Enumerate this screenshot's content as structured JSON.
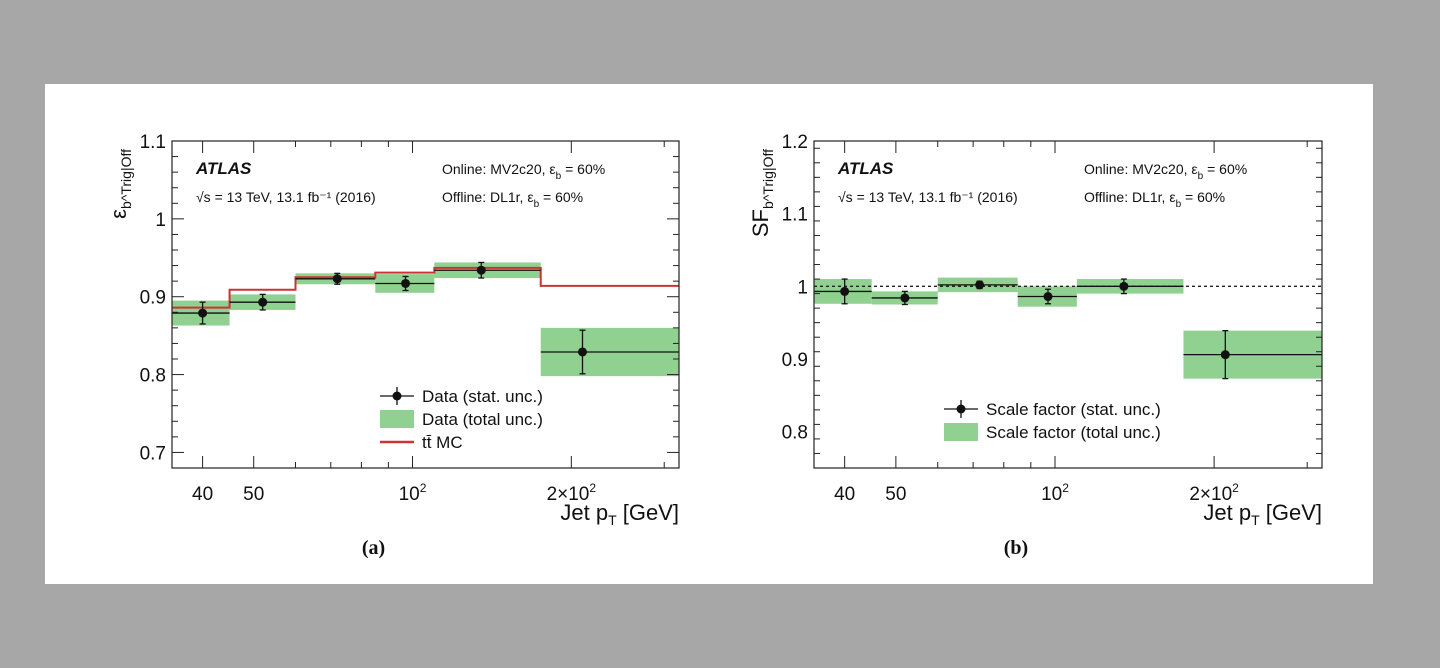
{
  "chart_data": [
    {
      "panel_label": "(a)",
      "type": "line",
      "ylabel": "ε_b^Trig|Off",
      "xlabel": "Jet p_T [GeV]",
      "x_scale": "log",
      "xlim": [
        35,
        320
      ],
      "ylim": [
        0.68,
        1.1
      ],
      "yticks": [
        0.7,
        0.8,
        0.9,
        1,
        1.1
      ],
      "ytick_labels": [
        "0.7",
        "0.8",
        "0.9",
        "1",
        "1.1"
      ],
      "xticks": [
        40,
        50,
        100,
        200
      ],
      "xtick_labels": [
        "40",
        "50",
        "10^2",
        "2×10^2"
      ],
      "experiment": "ATLAS",
      "energy_text": "√s = 13 TeV, 13.1 fb⁻¹ (2016)",
      "online_text": "Online: MV2c20, ε_b = 60%",
      "offline_text": "Offline: DL1r, ε_b = 60%",
      "legend": [
        "Data (stat. unc.)",
        "Data (total unc.)",
        "tt̄ MC"
      ],
      "series": [
        {
          "name": "Data (stat. unc.)",
          "bins": [
            [
              35,
              45
            ],
            [
              45,
              60
            ],
            [
              60,
              85
            ],
            [
              85,
              110
            ],
            [
              110,
              175
            ],
            [
              175,
              320
            ]
          ],
          "x": [
            40,
            52,
            72,
            97,
            135,
            210
          ],
          "values": [
            0.879,
            0.893,
            0.923,
            0.917,
            0.934,
            0.829
          ],
          "stat_err": [
            0.014,
            0.01,
            0.007,
            0.009,
            0.01,
            0.028
          ],
          "total_err": [
            0.016,
            0.01,
            0.007,
            0.012,
            0.01,
            0.031
          ]
        },
        {
          "name": "tt̄ MC",
          "bins": [
            [
              35,
              45
            ],
            [
              45,
              60
            ],
            [
              60,
              85
            ],
            [
              85,
              110
            ],
            [
              110,
              175
            ],
            [
              175,
              320
            ]
          ],
          "values": [
            0.886,
            0.909,
            0.925,
            0.931,
            0.937,
            0.914
          ]
        }
      ],
      "colors": {
        "band": "#90d090",
        "mc": "#cc3333",
        "data": "#111111"
      }
    },
    {
      "panel_label": "(b)",
      "type": "line",
      "ylabel": "SF_b^Trig|Off",
      "xlabel": "Jet p_T [GeV]",
      "x_scale": "log",
      "xlim": [
        35,
        320
      ],
      "ylim": [
        0.75,
        1.2
      ],
      "yticks": [
        0.8,
        0.9,
        1,
        1.1,
        1.2
      ],
      "ytick_labels": [
        "0.8",
        "0.9",
        "1",
        "1.1",
        "1.2"
      ],
      "xticks": [
        40,
        50,
        100,
        200
      ],
      "xtick_labels": [
        "40",
        "50",
        "10^2",
        "2×10^2"
      ],
      "experiment": "ATLAS",
      "energy_text": "√s = 13 TeV, 13.1 fb⁻¹ (2016)",
      "online_text": "Online: MV2c20, ε_b = 60%",
      "offline_text": "Offline: DL1r, ε_b = 60%",
      "legend": [
        "Scale factor (stat. unc.)",
        "Scale factor (total unc.)"
      ],
      "reference_line": 1,
      "series": [
        {
          "name": "Scale factor (stat. unc.)",
          "bins": [
            [
              35,
              45
            ],
            [
              45,
              60
            ],
            [
              60,
              85
            ],
            [
              85,
              110
            ],
            [
              110,
              175
            ],
            [
              175,
              320
            ]
          ],
          "x": [
            40,
            52,
            72,
            97,
            135,
            210
          ],
          "values": [
            0.993,
            0.984,
            1.002,
            0.986,
            1.0,
            0.906
          ],
          "stat_err": [
            0.017,
            0.009,
            0.005,
            0.01,
            0.01,
            0.033
          ],
          "total_err": [
            0.017,
            0.009,
            0.01,
            0.014,
            0.01,
            0.033
          ]
        }
      ],
      "colors": {
        "band": "#90d090",
        "data": "#111111"
      }
    }
  ]
}
